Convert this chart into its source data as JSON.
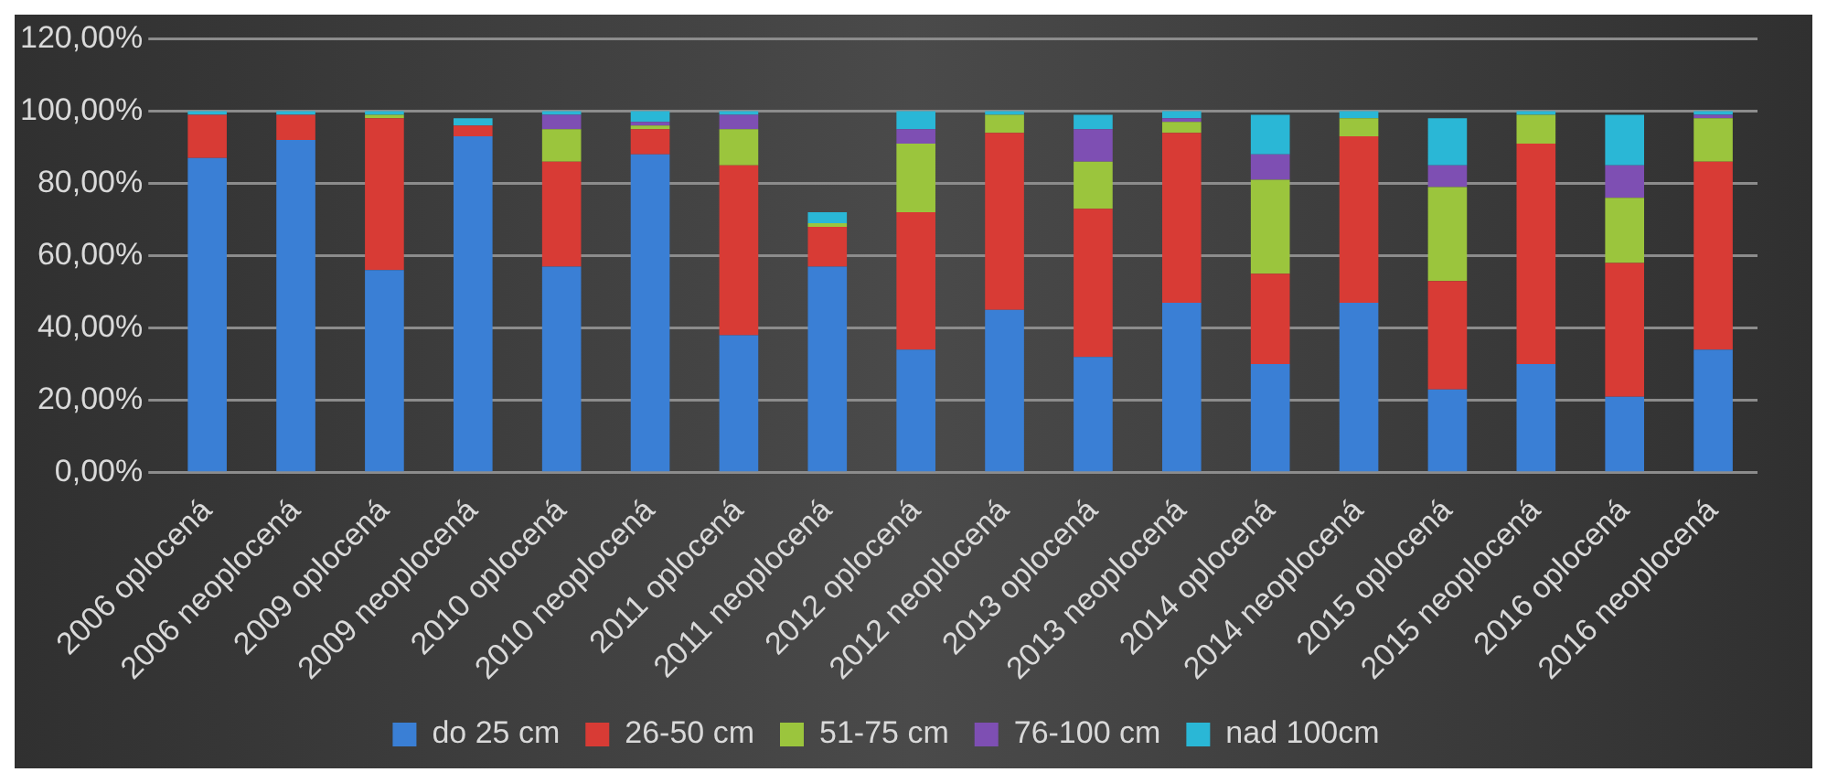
{
  "chart_data": {
    "type": "bar",
    "stacked": true,
    "categories": [
      "2006 oplocená",
      "2006 neoplocená",
      "2009 oplocená",
      "2009 neoplocená",
      "2010 oplocená",
      "2010 neoplocená",
      "2011 oplocená",
      "2011 neoplocená",
      "2012 oplocená",
      "2012 neoplocená",
      "2013 oplocená",
      "2013 neoplocená",
      "2014 oplocená",
      "2014 neoplocená",
      "2015 oplocená",
      "2015 neoplocená",
      "2016 oplocená",
      "2016 neoplocená"
    ],
    "series": [
      {
        "name": "do 25 cm",
        "color": "#3a7fd5",
        "values": [
          87,
          92,
          56,
          93,
          57,
          88,
          38,
          57,
          34,
          45,
          32,
          47,
          30,
          47,
          23,
          30,
          21,
          34
        ]
      },
      {
        "name": "26-50 cm",
        "color": "#d83b35",
        "values": [
          12,
          7,
          42,
          3,
          29,
          7,
          47,
          11,
          38,
          49,
          41,
          47,
          25,
          46,
          30,
          61,
          37,
          52
        ]
      },
      {
        "name": "51-75 cm",
        "color": "#9bc53d",
        "values": [
          0,
          0,
          1,
          0,
          9,
          1,
          10,
          1,
          19,
          5,
          13,
          3,
          26,
          5,
          26,
          8,
          18,
          12
        ]
      },
      {
        "name": "76-100 cm",
        "color": "#7e4fb3",
        "values": [
          0,
          0,
          0,
          0,
          4,
          1,
          4,
          0,
          4,
          0,
          9,
          1,
          7,
          0,
          6,
          0,
          9,
          1
        ]
      },
      {
        "name": "nad 100cm",
        "color": "#2ab7d6",
        "values": [
          1,
          1,
          1,
          2,
          1,
          3,
          1,
          3,
          5,
          1,
          4,
          2,
          11,
          2,
          13,
          1,
          14,
          1
        ]
      }
    ],
    "ylim": [
      0,
      120
    ],
    "yticks": [
      {
        "value": 0,
        "label": "0,00%"
      },
      {
        "value": 20,
        "label": "20,00%"
      },
      {
        "value": 40,
        "label": "40,00%"
      },
      {
        "value": 60,
        "label": "60,00%"
      },
      {
        "value": 80,
        "label": "80,00%"
      },
      {
        "value": 100,
        "label": "100,00%"
      },
      {
        "value": 120,
        "label": "120,00%"
      }
    ],
    "grid": "y",
    "legend": "bottom"
  }
}
